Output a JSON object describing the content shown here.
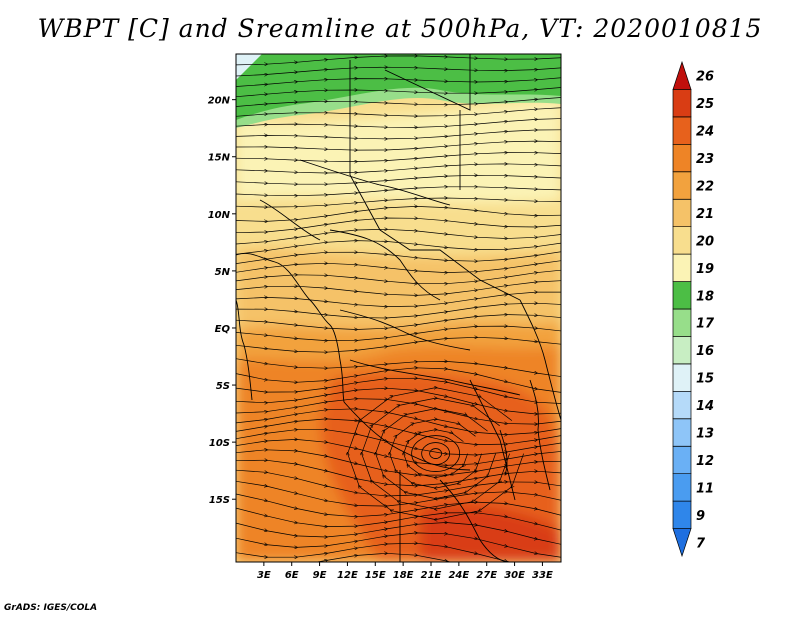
{
  "title": "WBPT [C] and Sreamline at 500hPa, VT: 2020010815",
  "credit": "GrADS: IGES/COLA",
  "map": {
    "lon_range": [
      0,
      35
    ],
    "lat_range": [
      -20.5,
      24
    ],
    "x_ticks": [
      {
        "lon": 3,
        "label": "3E"
      },
      {
        "lon": 6,
        "label": "6E"
      },
      {
        "lon": 9,
        "label": "9E"
      },
      {
        "lon": 12,
        "label": "12E"
      },
      {
        "lon": 15,
        "label": "15E"
      },
      {
        "lon": 18,
        "label": "18E"
      },
      {
        "lon": 21,
        "label": "21E"
      },
      {
        "lon": 24,
        "label": "24E"
      },
      {
        "lon": 27,
        "label": "27E"
      },
      {
        "lon": 30,
        "label": "30E"
      },
      {
        "lon": 33,
        "label": "33E"
      }
    ],
    "y_ticks": [
      {
        "lat": 20,
        "label": "20N"
      },
      {
        "lat": 15,
        "label": "15N"
      },
      {
        "lat": 10,
        "label": "10N"
      },
      {
        "lat": 5,
        "label": "5N"
      },
      {
        "lat": 0,
        "label": "EQ"
      },
      {
        "lat": -5,
        "label": "5S"
      },
      {
        "lat": -10,
        "label": "10S"
      },
      {
        "lat": -15,
        "label": "15S"
      }
    ]
  },
  "colorbar": {
    "levels": [
      "7",
      "9",
      "11",
      "12",
      "13",
      "14",
      "15",
      "16",
      "17",
      "18",
      "19",
      "20",
      "21",
      "22",
      "23",
      "24",
      "25",
      "26"
    ],
    "colors": [
      "#1e6fe0",
      "#2f86ea",
      "#4a9cf0",
      "#6ab0f5",
      "#8ec5f8",
      "#b5daf9",
      "#dff2f7",
      "#c8eec3",
      "#97de8a",
      "#4cbe45",
      "#fbf3b5",
      "#f8de8e",
      "#f5c268",
      "#f2a23e",
      "#ee8426",
      "#e7611c",
      "#d93d14",
      "#c0100c"
    ]
  },
  "field": {
    "regions": [
      {
        "name": "north-green",
        "color": "#4cbe45"
      },
      {
        "name": "light-green-band",
        "color": "#97de8a"
      },
      {
        "name": "pale-yellow",
        "color": "#fbf3b5"
      },
      {
        "name": "yellow",
        "color": "#f8de8e"
      },
      {
        "name": "light-orange",
        "color": "#f5c268"
      },
      {
        "name": "orange",
        "color": "#f2a23e"
      },
      {
        "name": "deep-orange",
        "color": "#ee8426"
      },
      {
        "name": "red-orange",
        "color": "#e7611c"
      },
      {
        "name": "red",
        "color": "#d93d14"
      }
    ],
    "vortex": {
      "lon": 21.5,
      "lat": -11
    }
  }
}
